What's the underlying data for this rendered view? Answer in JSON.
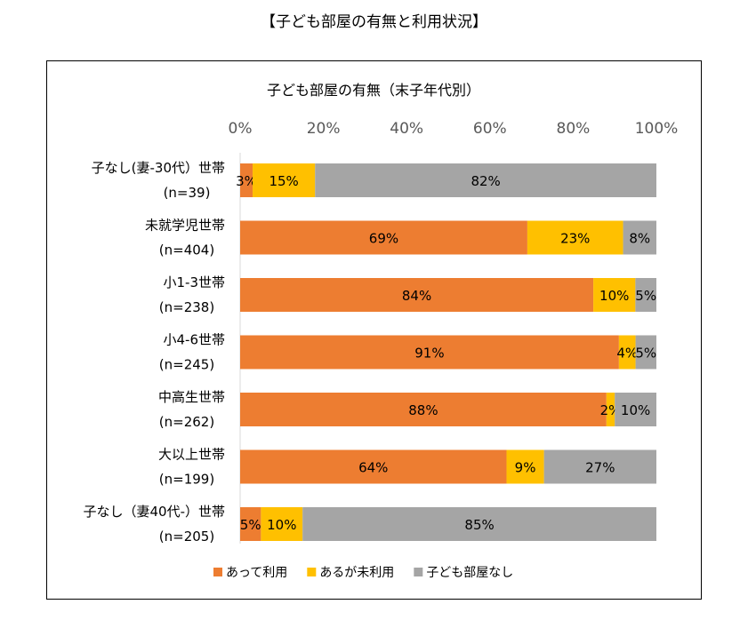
{
  "page_title": "【子ども部屋の有無と利用状況】",
  "chart_data": {
    "type": "bar",
    "orientation": "horizontal",
    "stacked": "percent",
    "title": "子ども部屋の有無（末子年代別）",
    "categories": [
      [
        "子なし(妻-30代）世帯",
        "(n=39)"
      ],
      [
        "未就学児世帯",
        "(n=404)"
      ],
      [
        "小1-3世帯",
        "(n=238)"
      ],
      [
        "小4-6世帯",
        "(n=245)"
      ],
      [
        "中高生世帯",
        "(n=262)"
      ],
      [
        "大以上世帯",
        "(n=199)"
      ],
      [
        "子なし（妻40代-）世帯",
        "(n=205)"
      ]
    ],
    "series": [
      {
        "name": "あって利用",
        "color": "#ED7D31",
        "values": [
          3,
          69,
          84,
          91,
          88,
          64,
          5
        ]
      },
      {
        "name": "あるが未利用",
        "color": "#FFC000",
        "values": [
          15,
          23,
          10,
          4,
          2,
          9,
          10
        ]
      },
      {
        "name": "子ども部屋なし",
        "color": "#A5A5A5",
        "values": [
          82,
          8,
          5,
          5,
          10,
          27,
          85
        ]
      }
    ],
    "xlim": [
      0,
      100
    ],
    "xticks": [
      "0%",
      "20%",
      "40%",
      "60%",
      "80%",
      "100%"
    ],
    "legend_position": "bottom",
    "grid": false
  }
}
